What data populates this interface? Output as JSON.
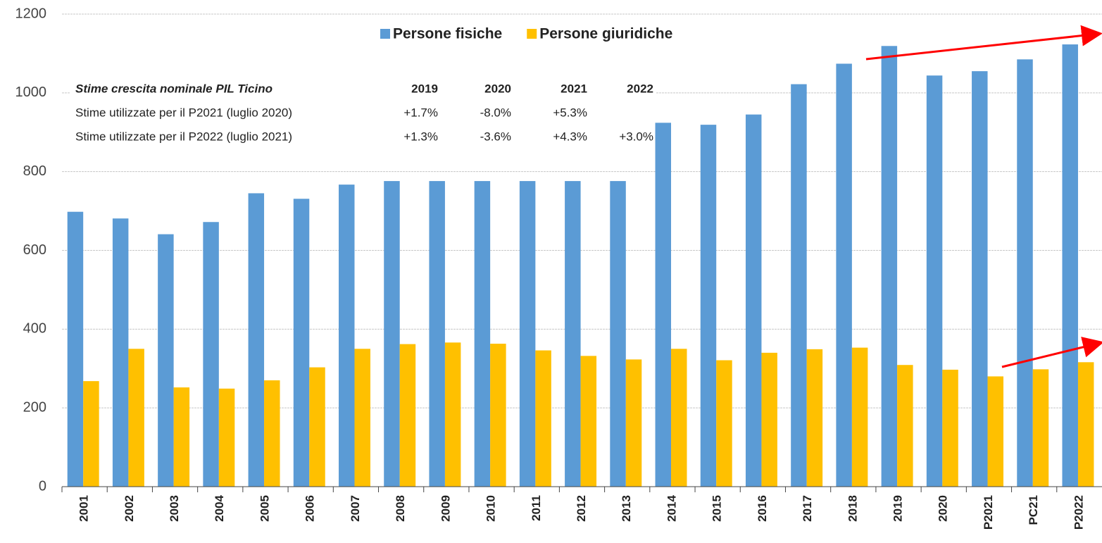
{
  "chart_data": {
    "type": "bar",
    "categories": [
      "2001",
      "2002",
      "2003",
      "2004",
      "2005",
      "2006",
      "2007",
      "2008",
      "2009",
      "2010",
      "2011",
      "2012",
      "2013",
      "2014",
      "2015",
      "2016",
      "2017",
      "2018",
      "2019",
      "2020",
      "P2021",
      "PC21",
      "P2022"
    ],
    "series": [
      {
        "name": "Persone fisiche",
        "color": "#5b9bd5",
        "values": [
          698,
          681,
          641,
          672,
          745,
          731,
          767,
          776,
          776,
          776,
          776,
          776,
          776,
          924,
          919,
          945,
          1022,
          1074,
          1119,
          1044,
          1055,
          1085,
          1123
        ]
      },
      {
        "name": "Persone giuridiche",
        "color": "#ffc000",
        "values": [
          268,
          350,
          252,
          249,
          270,
          303,
          350,
          362,
          366,
          363,
          346,
          332,
          323,
          350,
          321,
          340,
          349,
          353,
          309,
          297,
          280,
          298,
          316
        ]
      }
    ],
    "ylim": [
      0,
      1200
    ],
    "yticks": [
      0,
      200,
      400,
      600,
      800,
      1000,
      1200
    ],
    "grid": true,
    "legend": "top",
    "table": {
      "title": "Stime crescita nominale PIL Ticino",
      "columns": [
        "2019",
        "2020",
        "2021",
        "2022"
      ],
      "rows": [
        {
          "label": "Stime utilizzate per il P2021 (luglio 2020)",
          "values": [
            "+1.7%",
            "-8.0%",
            "+5.3%"
          ]
        },
        {
          "label": "Stime utilizzate per il P2022 (luglio 2021)",
          "values": [
            "+1.3%",
            "-3.6%",
            "+4.3%",
            "+3.0%"
          ]
        }
      ]
    }
  }
}
